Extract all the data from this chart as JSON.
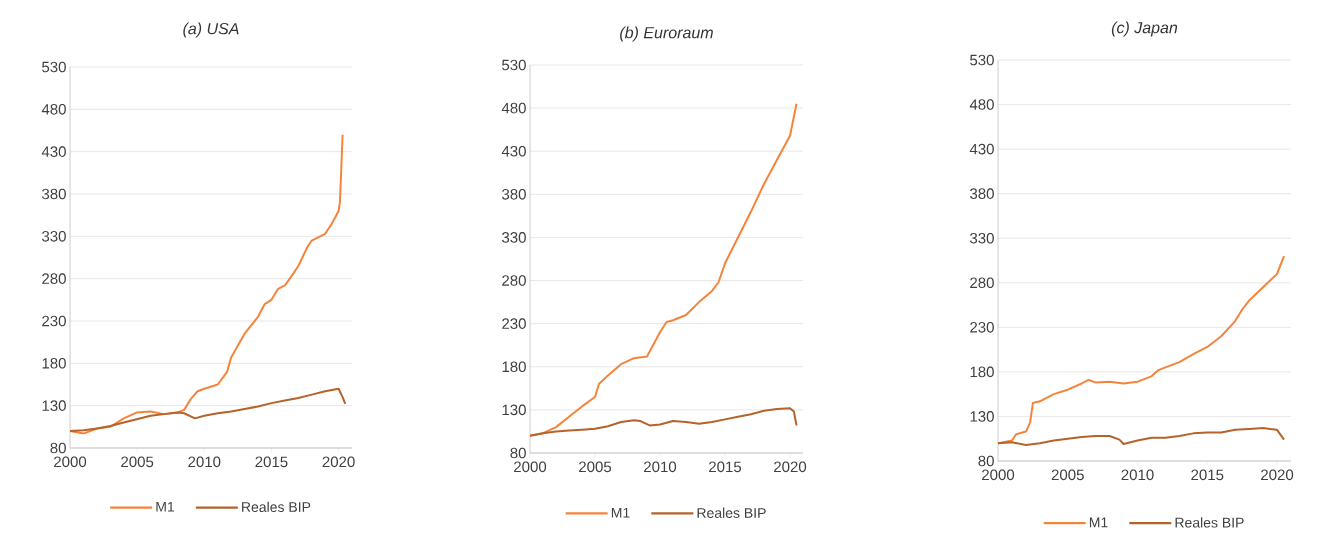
{
  "chart_data": [
    {
      "type": "line",
      "title": "(a) USA",
      "xlim": [
        2000,
        2021
      ],
      "xticks": [
        2000,
        2005,
        2010,
        2015,
        2020
      ],
      "ylim": [
        80,
        530
      ],
      "yticks": [
        80,
        130,
        180,
        230,
        280,
        330,
        380,
        430,
        480,
        530
      ],
      "grid": "y",
      "legend": "bottom",
      "series": [
        {
          "name": "M1",
          "color": "#f5843a",
          "x": [
            2000,
            2001,
            2002,
            2003,
            2004,
            2005,
            2006,
            2007,
            2008,
            2008.5,
            2009,
            2009.5,
            2010,
            2011,
            2011.7,
            2012,
            2013,
            2014,
            2014.5,
            2015,
            2015.5,
            2016,
            2016.5,
            2017,
            2017.7,
            2018,
            2019,
            2019.5,
            2020,
            2020.1,
            2020.3
          ],
          "values": [
            100,
            97,
            103,
            105,
            115,
            122,
            123,
            120,
            122,
            125,
            138,
            147,
            150,
            155,
            170,
            187,
            215,
            235,
            250,
            255,
            268,
            272,
            283,
            295,
            318,
            325,
            333,
            345,
            360,
            370,
            450
          ]
        },
        {
          "name": "Reales BIP",
          "color": "#b5622b",
          "x": [
            2000,
            2001,
            2002,
            2003,
            2004,
            2005,
            2006,
            2007,
            2008,
            2008.5,
            2009.3,
            2010,
            2011,
            2012,
            2013,
            2014,
            2015,
            2016,
            2017,
            2018,
            2019,
            2020,
            2020.3,
            2020.5
          ],
          "values": [
            100,
            101,
            103,
            106,
            110,
            114,
            118,
            120,
            122,
            121,
            115,
            118,
            121,
            123,
            126,
            129,
            133,
            136,
            139,
            143,
            147,
            150,
            140,
            132
          ]
        }
      ]
    },
    {
      "type": "line",
      "title": "(b) Euroraum",
      "xlim": [
        2000,
        2021
      ],
      "xticks": [
        2000,
        2005,
        2010,
        2015,
        2020
      ],
      "ylim": [
        80,
        530
      ],
      "yticks": [
        80,
        130,
        180,
        230,
        280,
        330,
        380,
        430,
        480,
        530
      ],
      "grid": "y",
      "legend": "bottom",
      "series": [
        {
          "name": "M1",
          "color": "#f5843a",
          "x": [
            2000,
            2001,
            2002,
            2003,
            2004,
            2005,
            2005.3,
            2006,
            2007,
            2008,
            2009,
            2010,
            2010.5,
            2011,
            2012,
            2013,
            2014,
            2014.5,
            2015,
            2016,
            2017,
            2018,
            2019,
            2020,
            2020.5
          ],
          "values": [
            100,
            103,
            110,
            122,
            134,
            145,
            160,
            170,
            183,
            190,
            192,
            220,
            232,
            234,
            240,
            255,
            268,
            278,
            300,
            330,
            360,
            392,
            420,
            448,
            485
          ]
        },
        {
          "name": "Reales BIP",
          "color": "#b5622b",
          "x": [
            2000,
            2001,
            2002,
            2003,
            2004,
            2005,
            2006,
            2007,
            2008,
            2008.5,
            2009.2,
            2010,
            2011,
            2012,
            2013,
            2014,
            2015,
            2016,
            2017,
            2018,
            2019,
            2020,
            2020.3,
            2020.5
          ],
          "values": [
            100,
            103,
            105,
            106,
            107,
            108,
            111,
            116,
            118,
            117,
            112,
            113,
            117,
            116,
            114,
            116,
            119,
            122,
            125,
            129,
            131,
            132,
            128,
            112
          ]
        }
      ]
    },
    {
      "type": "line",
      "title": "(c) Japan",
      "xlim": [
        2000,
        2021
      ],
      "xticks": [
        2000,
        2005,
        2010,
        2015,
        2020
      ],
      "ylim": [
        80,
        530
      ],
      "yticks": [
        80,
        130,
        180,
        230,
        280,
        330,
        380,
        430,
        480,
        530
      ],
      "grid": "y",
      "legend": "bottom",
      "series": [
        {
          "name": "M1",
          "color": "#f5843a",
          "x": [
            2000,
            2001,
            2001.3,
            2002,
            2002.3,
            2002.5,
            2003,
            2004,
            2005,
            2006,
            2006.5,
            2007,
            2008,
            2009,
            2010,
            2011,
            2011.5,
            2012,
            2013,
            2014,
            2015,
            2016,
            2017,
            2017.5,
            2018,
            2019,
            2020,
            2020.5
          ],
          "values": [
            100,
            103,
            110,
            113,
            123,
            145,
            147,
            155,
            160,
            167,
            171,
            168,
            169,
            167,
            169,
            175,
            182,
            185,
            191,
            200,
            208,
            220,
            237,
            250,
            260,
            275,
            290,
            310
          ]
        },
        {
          "name": "Reales BIP",
          "color": "#b5622b",
          "x": [
            2000,
            2001,
            2002,
            2003,
            2004,
            2005,
            2006,
            2007,
            2008,
            2008.7,
            2009,
            2010,
            2011,
            2012,
            2013,
            2014,
            2015,
            2016,
            2017,
            2018,
            2019,
            2020,
            2020.5
          ],
          "values": [
            100,
            101,
            98,
            100,
            103,
            105,
            107,
            108,
            108,
            104,
            99,
            103,
            106,
            106,
            108,
            111,
            112,
            112,
            115,
            116,
            117,
            115,
            104
          ]
        }
      ]
    }
  ]
}
